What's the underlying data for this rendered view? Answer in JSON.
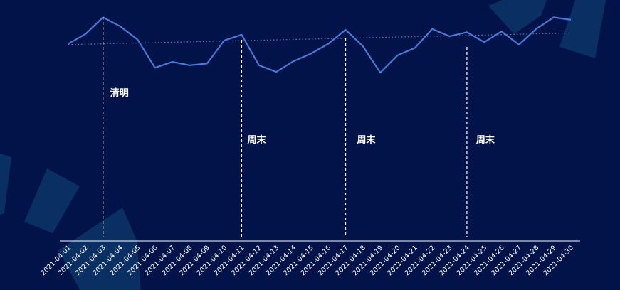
{
  "theme": {
    "background": "#011349",
    "line_color": "#4a78d6",
    "trend_color": "#5a7fc6",
    "axis_color": "#ffffff",
    "marker_color": "#ffffff",
    "decor_color": "#0c3566"
  },
  "chart_data": {
    "type": "line",
    "title": "",
    "xlabel": "",
    "ylabel": "",
    "grid": false,
    "x_axis": "dates, one tick per day, labels rotated 45 degrees",
    "y_axis": "hidden (no tick labels)",
    "categories": [
      "2021-04-01",
      "2021-04-02",
      "2021-04-03",
      "2021-04-04",
      "2021-04-05",
      "2021-04-06",
      "2021-04-07",
      "2021-04-08",
      "2021-04-09",
      "2021-04-10",
      "2021-04-11",
      "2021-04-12",
      "2021-04-13",
      "2021-04-14",
      "2021-04-15",
      "2021-04-16",
      "2021-04-17",
      "2021-04-18",
      "2021-04-19",
      "2021-04-20",
      "2021-04-21",
      "2021-04-22",
      "2021-04-23",
      "2021-04-24",
      "2021-04-25",
      "2021-04-26",
      "2021-04-27",
      "2021-04-28",
      "2021-04-29",
      "2021-04-30"
    ],
    "series": [
      {
        "values": [
          59,
          71,
          91,
          80,
          64,
          30,
          37,
          33,
          35,
          63,
          70,
          33,
          25,
          38,
          47,
          59,
          76,
          56,
          24,
          45,
          54,
          77,
          68,
          73,
          61,
          74,
          58,
          77,
          91,
          88
        ]
      }
    ],
    "trend_line": {
      "style": "dotted",
      "start": 58,
      "end": 72
    },
    "ylim": [
      -180,
      100
    ],
    "annotations": [
      {
        "date": "2021-04-03",
        "label": "清明",
        "style": "dashed vertical line"
      },
      {
        "date": "2021-04-11",
        "label": "周末",
        "style": "dashed vertical line"
      },
      {
        "date": "2021-04-17",
        "label": "周末",
        "style": "dashed vertical line"
      },
      {
        "date": "2021-04-24",
        "label": "周末",
        "style": "dashed vertical line"
      }
    ]
  }
}
